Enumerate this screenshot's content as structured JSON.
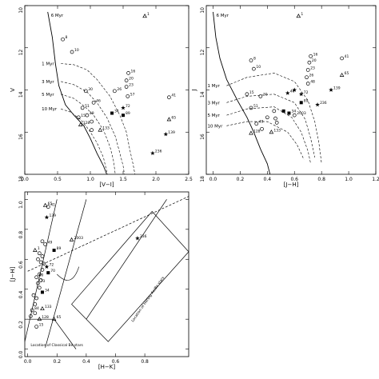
{
  "chart_data": [
    {
      "type": "scatter",
      "xlabel": "[V−I]",
      "ylabel": "V",
      "xlim": [
        0,
        2.5
      ],
      "ylim": [
        18,
        10
      ],
      "xticks": [
        "0.0",
        "0.5",
        "1.0",
        "1.5",
        "2.0",
        "2.5"
      ],
      "yticks": [
        "10",
        "12",
        "14",
        "16",
        "18"
      ],
      "isochrones": [
        {
          "label": "6 Myr",
          "pts": [
            [
              0.35,
              10.3
            ],
            [
              0.42,
              11.5
            ],
            [
              0.47,
              12.8
            ],
            [
              0.52,
              13.8
            ],
            [
              0.62,
              14.7
            ],
            [
              0.75,
              15.2
            ],
            [
              0.9,
              15.7
            ],
            [
              1.0,
              16.3
            ],
            [
              1.1,
              17.0
            ],
            [
              1.2,
              17.6
            ],
            [
              1.25,
              18.0
            ]
          ]
        },
        {
          "label": "1 Myr",
          "pts": [
            [
              0.55,
              12.75
            ],
            [
              0.75,
              12.8
            ],
            [
              0.95,
              13.05
            ],
            [
              1.1,
              13.5
            ],
            [
              1.3,
              14.3
            ],
            [
              1.45,
              15.2
            ],
            [
              1.55,
              16.0
            ],
            [
              1.6,
              16.8
            ],
            [
              1.65,
              17.5
            ],
            [
              1.68,
              18.0
            ]
          ]
        },
        {
          "label": "3 Myr",
          "pts": [
            [
              0.55,
              13.6
            ],
            [
              0.75,
              13.75
            ],
            [
              0.95,
              14.1
            ],
            [
              1.1,
              14.6
            ],
            [
              1.25,
              15.3
            ],
            [
              1.38,
              16.2
            ],
            [
              1.45,
              17.0
            ],
            [
              1.5,
              17.6
            ],
            [
              1.52,
              18.0
            ]
          ]
        },
        {
          "label": "5 Myr",
          "pts": [
            [
              0.55,
              14.2
            ],
            [
              0.75,
              14.4
            ],
            [
              0.9,
              14.75
            ],
            [
              1.05,
              15.2
            ],
            [
              1.2,
              15.9
            ],
            [
              1.3,
              16.7
            ],
            [
              1.35,
              17.3
            ],
            [
              1.38,
              18.0
            ]
          ]
        },
        {
          "label": "10 Myr",
          "pts": [
            [
              0.55,
              14.9
            ],
            [
              0.7,
              15.05
            ],
            [
              0.85,
              15.4
            ],
            [
              0.98,
              15.9
            ],
            [
              1.1,
              16.5
            ],
            [
              1.2,
              17.2
            ],
            [
              1.26,
              18.0
            ]
          ]
        }
      ],
      "points": [
        {
          "x": 1.83,
          "y": 10.5,
          "label": "1",
          "m": "tri"
        },
        {
          "x": 0.58,
          "y": 11.6,
          "label": "8",
          "m": "circ"
        },
        {
          "x": 0.72,
          "y": 12.2,
          "label": "10",
          "m": "circ"
        },
        {
          "x": 1.58,
          "y": 13.2,
          "label": "16",
          "m": "circ"
        },
        {
          "x": 1.55,
          "y": 13.55,
          "label": "20",
          "m": "circ"
        },
        {
          "x": 1.55,
          "y": 13.85,
          "label": "23",
          "m": "circ"
        },
        {
          "x": 1.37,
          "y": 14.05,
          "label": "26",
          "m": "circ"
        },
        {
          "x": 1.57,
          "y": 14.3,
          "label": "57",
          "m": "circ"
        },
        {
          "x": 2.2,
          "y": 14.35,
          "label": "41",
          "m": "circ"
        },
        {
          "x": 0.93,
          "y": 14.05,
          "label": "30",
          "m": "circ"
        },
        {
          "x": 1.05,
          "y": 14.6,
          "label": "46",
          "m": "circ"
        },
        {
          "x": 0.88,
          "y": 14.85,
          "label": "51",
          "m": "circ"
        },
        {
          "x": 1.5,
          "y": 14.85,
          "label": "72",
          "m": "star"
        },
        {
          "x": 1.33,
          "y": 15.1,
          "label": "34",
          "m": "sq"
        },
        {
          "x": 1.5,
          "y": 15.2,
          "label": "89",
          "m": "sq"
        },
        {
          "x": 0.82,
          "y": 15.3,
          "label": "15",
          "m": "circ"
        },
        {
          "x": 0.95,
          "y": 15.2,
          "label": "49",
          "m": "circ"
        },
        {
          "x": 1.02,
          "y": 15.5,
          "label": "",
          "m": "circ"
        },
        {
          "x": 2.2,
          "y": 15.4,
          "label": "65",
          "m": "tri"
        },
        {
          "x": 0.85,
          "y": 15.65,
          "label": "128",
          "m": "tri"
        },
        {
          "x": 1.02,
          "y": 15.9,
          "label": "",
          "m": "circ"
        },
        {
          "x": 1.15,
          "y": 15.9,
          "label": "133",
          "m": "tri"
        },
        {
          "x": 2.15,
          "y": 16.1,
          "label": "139",
          "m": "star"
        },
        {
          "x": 1.95,
          "y": 17.0,
          "label": "236",
          "m": "star"
        }
      ]
    },
    {
      "type": "scatter",
      "xlabel": "[J−H]",
      "ylabel": "J",
      "xlim": [
        -0.05,
        1.2
      ],
      "ylim": [
        18,
        10
      ],
      "xticks": [
        "0.0",
        "0.2",
        "0.4",
        "0.6",
        "0.8",
        "1.0",
        "1.2"
      ],
      "yticks": [
        "10",
        "12",
        "14",
        "16",
        "18"
      ],
      "isochrones": [
        {
          "label": "6 Myr",
          "pts": [
            [
              0.0,
              10.3
            ],
            [
              0.02,
              11.5
            ],
            [
              0.05,
              12.5
            ],
            [
              0.1,
              13.5
            ],
            [
              0.18,
              14.5
            ],
            [
              0.25,
              15.3
            ],
            [
              0.3,
              16.0
            ],
            [
              0.35,
              16.8
            ],
            [
              0.4,
              17.5
            ],
            [
              0.42,
              18.0
            ]
          ]
        },
        {
          "label": "1 Myr",
          "pts": [
            [
              0.1,
              13.8
            ],
            [
              0.25,
              13.4
            ],
            [
              0.45,
              13.2
            ],
            [
              0.6,
              13.6
            ],
            [
              0.7,
              14.5
            ],
            [
              0.75,
              15.5
            ],
            [
              0.78,
              16.5
            ],
            [
              0.8,
              17.5
            ]
          ]
        },
        {
          "label": "3 Myr",
          "pts": [
            [
              0.1,
              14.6
            ],
            [
              0.25,
              14.3
            ],
            [
              0.45,
              14.2
            ],
            [
              0.6,
              14.6
            ],
            [
              0.68,
              15.4
            ],
            [
              0.72,
              16.3
            ],
            [
              0.75,
              17.2
            ]
          ]
        },
        {
          "label": "5 Myr",
          "pts": [
            [
              0.1,
              15.2
            ],
            [
              0.25,
              14.9
            ],
            [
              0.45,
              14.8
            ],
            [
              0.58,
              15.3
            ],
            [
              0.65,
              16.0
            ],
            [
              0.7,
              16.9
            ],
            [
              0.72,
              17.5
            ]
          ]
        },
        {
          "label": "10 Myr",
          "pts": [
            [
              0.1,
              15.7
            ],
            [
              0.25,
              15.5
            ],
            [
              0.4,
              15.5
            ],
            [
              0.55,
              16.0
            ],
            [
              0.62,
              16.6
            ],
            [
              0.67,
              17.3
            ]
          ]
        }
      ],
      "points": [
        {
          "x": 0.63,
          "y": 10.5,
          "label": "1",
          "m": "tri"
        },
        {
          "x": 0.72,
          "y": 12.4,
          "label": "16",
          "m": "circ"
        },
        {
          "x": 0.71,
          "y": 12.7,
          "label": "20",
          "m": "circ"
        },
        {
          "x": 0.7,
          "y": 13.05,
          "label": "23",
          "m": "circ"
        },
        {
          "x": 0.69,
          "y": 13.4,
          "label": "26",
          "m": "circ"
        },
        {
          "x": 0.7,
          "y": 13.7,
          "label": "48",
          "m": "circ"
        },
        {
          "x": 0.95,
          "y": 12.5,
          "label": "41",
          "m": "circ"
        },
        {
          "x": 0.28,
          "y": 12.6,
          "label": "8",
          "m": "circ"
        },
        {
          "x": 0.3,
          "y": 13.0,
          "label": "10",
          "m": "circ"
        },
        {
          "x": 0.95,
          "y": 13.3,
          "label": "65",
          "m": "tri"
        },
        {
          "x": 0.87,
          "y": 14.0,
          "label": "139",
          "m": "star"
        },
        {
          "x": 0.6,
          "y": 14.0,
          "label": "",
          "m": "star"
        },
        {
          "x": 0.55,
          "y": 14.15,
          "label": "46",
          "m": "star"
        },
        {
          "x": 0.65,
          "y": 14.2,
          "label": "72",
          "m": "star"
        },
        {
          "x": 0.35,
          "y": 14.3,
          "label": "30",
          "m": "circ"
        },
        {
          "x": 0.25,
          "y": 14.2,
          "label": "15",
          "m": "circ"
        },
        {
          "x": 0.65,
          "y": 14.6,
          "label": "89",
          "m": "sq"
        },
        {
          "x": 0.77,
          "y": 14.7,
          "label": "236",
          "m": "star"
        },
        {
          "x": 0.28,
          "y": 14.85,
          "label": "51",
          "m": "circ"
        },
        {
          "x": 0.45,
          "y": 15.0,
          "label": "",
          "m": "circ"
        },
        {
          "x": 0.52,
          "y": 15.0,
          "label": "",
          "m": "sq"
        },
        {
          "x": 0.56,
          "y": 15.1,
          "label": "34",
          "m": "sq"
        },
        {
          "x": 0.6,
          "y": 15.2,
          "label": "2003",
          "m": "circ"
        },
        {
          "x": 0.4,
          "y": 15.3,
          "label": "",
          "m": "circ"
        },
        {
          "x": 0.46,
          "y": 15.35,
          "label": "",
          "m": "circ"
        },
        {
          "x": 0.47,
          "y": 15.55,
          "label": "",
          "m": "circ"
        },
        {
          "x": 0.32,
          "y": 15.6,
          "label": "49",
          "m": "circ"
        },
        {
          "x": 0.36,
          "y": 15.85,
          "label": "",
          "m": "circ"
        },
        {
          "x": 0.28,
          "y": 16.05,
          "label": "128",
          "m": "tri"
        },
        {
          "x": 0.43,
          "y": 16.0,
          "label": "133",
          "m": "tri"
        }
      ]
    },
    {
      "type": "scatter",
      "xlabel": "[H−K]",
      "ylabel": "[J−H]",
      "xlim": [
        -0.02,
        1.1
      ],
      "ylim": [
        -0.05,
        1.05
      ],
      "xticks": [
        "0.0",
        "0.2",
        "0.4",
        "0.6",
        "0.8"
      ],
      "yticks": [
        "0.0",
        "0.2",
        "0.4",
        "0.6",
        "0.8",
        "1.0"
      ],
      "regions": [
        "Location of Classical Be stars",
        "Location of Herbig Ae/Be stars"
      ],
      "points": [
        {
          "x": 0.14,
          "y": 0.95,
          "label": "41",
          "m": "circ"
        },
        {
          "x": 0.12,
          "y": 0.96,
          "label": "65",
          "m": "tri"
        },
        {
          "x": 0.13,
          "y": 0.88,
          "label": "139",
          "m": "star"
        },
        {
          "x": 0.75,
          "y": 0.74,
          "label": "236",
          "m": "star"
        },
        {
          "x": 0.1,
          "y": 0.72,
          "label": "",
          "m": "circ"
        },
        {
          "x": 0.12,
          "y": 0.7,
          "label": "49",
          "m": "circ"
        },
        {
          "x": 0.3,
          "y": 0.73,
          "label": "2003",
          "m": "tri"
        },
        {
          "x": 0.18,
          "y": 0.66,
          "label": "89",
          "m": "sq"
        },
        {
          "x": 0.05,
          "y": 0.66,
          "label": "1",
          "m": "tri"
        },
        {
          "x": 0.08,
          "y": 0.64,
          "label": "",
          "m": "circ"
        },
        {
          "x": 0.1,
          "y": 0.62,
          "label": "",
          "m": "circ"
        },
        {
          "x": 0.07,
          "y": 0.6,
          "label": "",
          "m": "circ"
        },
        {
          "x": 0.09,
          "y": 0.58,
          "label": "",
          "m": "circ"
        },
        {
          "x": 0.11,
          "y": 0.57,
          "label": "",
          "m": "circ"
        },
        {
          "x": 0.13,
          "y": 0.55,
          "label": "72",
          "m": "star"
        },
        {
          "x": 0.1,
          "y": 0.53,
          "label": "",
          "m": "circ"
        },
        {
          "x": 0.14,
          "y": 0.51,
          "label": "70",
          "m": "sq"
        },
        {
          "x": 0.08,
          "y": 0.5,
          "label": "",
          "m": "circ"
        },
        {
          "x": 0.06,
          "y": 0.48,
          "label": "60",
          "m": "circ"
        },
        {
          "x": 0.09,
          "y": 0.46,
          "label": "",
          "m": "circ"
        },
        {
          "x": 0.07,
          "y": 0.44,
          "label": "73",
          "m": "circ"
        },
        {
          "x": 0.08,
          "y": 0.41,
          "label": "",
          "m": "circ"
        },
        {
          "x": 0.1,
          "y": 0.38,
          "label": "34",
          "m": "sq"
        },
        {
          "x": 0.04,
          "y": 0.36,
          "label": "",
          "m": "circ"
        },
        {
          "x": 0.06,
          "y": 0.34,
          "label": "",
          "m": "circ"
        },
        {
          "x": 0.05,
          "y": 0.3,
          "label": "",
          "m": "circ"
        },
        {
          "x": 0.03,
          "y": 0.26,
          "label": "84",
          "m": "circ"
        },
        {
          "x": 0.05,
          "y": 0.24,
          "label": "",
          "m": "circ"
        },
        {
          "x": 0.02,
          "y": 0.22,
          "label": "",
          "m": "circ"
        },
        {
          "x": 0.08,
          "y": 0.2,
          "label": "128",
          "m": "tri"
        },
        {
          "x": 0.18,
          "y": 0.2,
          "label": "65",
          "m": "tri"
        },
        {
          "x": 0.06,
          "y": 0.15,
          "label": "15",
          "m": "circ"
        },
        {
          "x": 0.1,
          "y": 0.27,
          "label": "133",
          "m": "tri"
        }
      ]
    }
  ]
}
